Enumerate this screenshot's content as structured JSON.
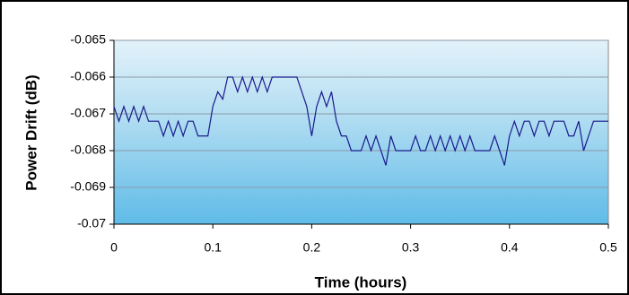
{
  "chart_data": {
    "type": "line",
    "xlabel": "Time (hours)",
    "ylabel": "Power Drift (dB)",
    "x": [
      0,
      0.005,
      0.01,
      0.015,
      0.02,
      0.025,
      0.03,
      0.035,
      0.04,
      0.045,
      0.05,
      0.055,
      0.06,
      0.065,
      0.07,
      0.075,
      0.08,
      0.085,
      0.09,
      0.095,
      0.1,
      0.105,
      0.11,
      0.115,
      0.12,
      0.125,
      0.13,
      0.135,
      0.14,
      0.145,
      0.15,
      0.155,
      0.16,
      0.165,
      0.17,
      0.175,
      0.18,
      0.185,
      0.19,
      0.195,
      0.2,
      0.205,
      0.21,
      0.215,
      0.22,
      0.225,
      0.23,
      0.235,
      0.24,
      0.245,
      0.25,
      0.255,
      0.26,
      0.265,
      0.27,
      0.275,
      0.28,
      0.285,
      0.29,
      0.295,
      0.3,
      0.305,
      0.31,
      0.315,
      0.32,
      0.325,
      0.33,
      0.335,
      0.34,
      0.345,
      0.35,
      0.355,
      0.36,
      0.365,
      0.37,
      0.375,
      0.38,
      0.385,
      0.39,
      0.395,
      0.4,
      0.405,
      0.41,
      0.415,
      0.42,
      0.425,
      0.43,
      0.435,
      0.44,
      0.445,
      0.45,
      0.455,
      0.46,
      0.465,
      0.47,
      0.475,
      0.48,
      0.485,
      0.49,
      0.495,
      0.5
    ],
    "series": [
      {
        "color": "#1a1a8c",
        "values": [
          -0.0668,
          -0.0672,
          -0.0668,
          -0.0672,
          -0.0668,
          -0.0672,
          -0.0668,
          -0.0672,
          -0.0672,
          -0.0672,
          -0.0676,
          -0.0672,
          -0.0676,
          -0.0672,
          -0.0676,
          -0.0672,
          -0.0672,
          -0.0676,
          -0.0676,
          -0.0676,
          -0.0668,
          -0.0664,
          -0.0666,
          -0.066,
          -0.066,
          -0.0664,
          -0.066,
          -0.0664,
          -0.066,
          -0.0664,
          -0.066,
          -0.0664,
          -0.066,
          -0.066,
          -0.066,
          -0.066,
          -0.066,
          -0.066,
          -0.0664,
          -0.0668,
          -0.0676,
          -0.0668,
          -0.0664,
          -0.0668,
          -0.0664,
          -0.0672,
          -0.0676,
          -0.0676,
          -0.068,
          -0.068,
          -0.068,
          -0.0676,
          -0.068,
          -0.0676,
          -0.068,
          -0.0684,
          -0.0676,
          -0.068,
          -0.068,
          -0.068,
          -0.068,
          -0.0676,
          -0.068,
          -0.068,
          -0.0676,
          -0.068,
          -0.0676,
          -0.068,
          -0.0676,
          -0.068,
          -0.0676,
          -0.068,
          -0.0676,
          -0.068,
          -0.068,
          -0.068,
          -0.068,
          -0.0676,
          -0.068,
          -0.0684,
          -0.0676,
          -0.0672,
          -0.0676,
          -0.0672,
          -0.0672,
          -0.0676,
          -0.0672,
          -0.0672,
          -0.0676,
          -0.0672,
          -0.0672,
          -0.0672,
          -0.0676,
          -0.0676,
          -0.0672,
          -0.068,
          -0.0676,
          -0.0672,
          -0.0672,
          -0.0672,
          -0.0672
        ]
      }
    ],
    "xlim": [
      0,
      0.5
    ],
    "xticks": [
      0,
      0.1,
      0.2,
      0.3,
      0.4,
      0.5
    ],
    "ylim": [
      -0.07,
      -0.065
    ],
    "yticks": [
      -0.07,
      -0.069,
      -0.068,
      -0.067,
      -0.066,
      -0.065
    ],
    "grid": true
  }
}
